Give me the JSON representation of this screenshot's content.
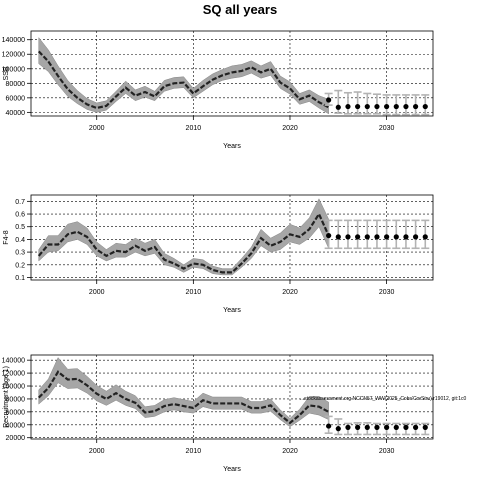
{
  "title": "SQ all years",
  "footnote": "...stockassessment.org NCCN57_WW(2025_Cobs'CorStru),r19012, git:1c0",
  "chart_data": [
    {
      "type": "line",
      "name": "ssb",
      "xlabel": "Years",
      "ylabel": "SSB",
      "xlim": [
        1993.2,
        2034.8
      ],
      "ylim": [
        35000,
        152000
      ],
      "xticks": [
        2000,
        2010,
        2020,
        2030
      ],
      "yticks": [
        40000,
        60000,
        80000,
        100000,
        120000,
        140000
      ],
      "x": [
        1994,
        1995,
        1996,
        1997,
        1998,
        1999,
        2000,
        2001,
        2002,
        2003,
        2004,
        2005,
        2006,
        2007,
        2008,
        2009,
        2010,
        2011,
        2012,
        2013,
        2014,
        2015,
        2016,
        2017,
        2018,
        2019,
        2020,
        2021,
        2022,
        2023,
        2024
      ],
      "estimate": [
        124000,
        110000,
        90000,
        72000,
        60000,
        51000,
        46000,
        49000,
        62000,
        74000,
        63000,
        68000,
        62000,
        76000,
        80000,
        81000,
        66000,
        76000,
        85000,
        91000,
        95000,
        97000,
        102000,
        95000,
        100000,
        81000,
        73000,
        58000,
        63000,
        54000,
        47000
      ],
      "lower": [
        107000,
        96000,
        78000,
        62000,
        52000,
        44000,
        40000,
        43000,
        55000,
        66000,
        56000,
        61000,
        56000,
        69000,
        73000,
        74000,
        60000,
        69000,
        78000,
        84000,
        87000,
        89000,
        94000,
        87000,
        91000,
        73000,
        65000,
        51000,
        55000,
        46000,
        38000
      ],
      "upper": [
        143000,
        126000,
        104000,
        84000,
        70000,
        59000,
        53000,
        56000,
        69000,
        83000,
        71000,
        76000,
        69000,
        84000,
        88000,
        89000,
        73000,
        84000,
        93000,
        99000,
        104000,
        106000,
        111000,
        104000,
        110000,
        90000,
        82000,
        66000,
        71000,
        63000,
        58000
      ],
      "forecast_x": [
        2024,
        2025,
        2026,
        2027,
        2028,
        2029,
        2030,
        2031,
        2032,
        2033,
        2034
      ],
      "forecast_median": [
        57000,
        47000,
        48000,
        48000,
        48000,
        48000,
        48000,
        48000,
        48000,
        48000,
        48000
      ],
      "forecast_low": [
        50000,
        39000,
        38000,
        38000,
        38000,
        38000,
        37000,
        37000,
        37000,
        37000,
        37000
      ],
      "forecast_high": [
        66000,
        70000,
        67000,
        68000,
        66000,
        65000,
        64000,
        64000,
        64000,
        64000,
        64000
      ]
    },
    {
      "type": "line",
      "name": "fbar",
      "xlabel": "Years",
      "ylabel": "F4-8",
      "xlim": [
        1993.2,
        2034.8
      ],
      "ylim": [
        0.08,
        0.75
      ],
      "xticks": [
        2000,
        2010,
        2020,
        2030
      ],
      "yticks": [
        0.1,
        0.2,
        0.3,
        0.4,
        0.5,
        0.6,
        0.7
      ],
      "x": [
        1994,
        1995,
        1996,
        1997,
        1998,
        1999,
        2000,
        2001,
        2002,
        2003,
        2004,
        2005,
        2006,
        2007,
        2008,
        2009,
        2010,
        2011,
        2012,
        2013,
        2014,
        2015,
        2016,
        2017,
        2018,
        2019,
        2020,
        2021,
        2022,
        2023,
        2024
      ],
      "estimate": [
        0.27,
        0.36,
        0.36,
        0.44,
        0.46,
        0.42,
        0.32,
        0.27,
        0.31,
        0.3,
        0.35,
        0.31,
        0.34,
        0.24,
        0.21,
        0.17,
        0.21,
        0.2,
        0.16,
        0.14,
        0.14,
        0.21,
        0.29,
        0.41,
        0.35,
        0.38,
        0.44,
        0.42,
        0.48,
        0.6,
        0.43
      ],
      "lower": [
        0.23,
        0.3,
        0.31,
        0.38,
        0.4,
        0.36,
        0.27,
        0.23,
        0.26,
        0.26,
        0.3,
        0.27,
        0.29,
        0.2,
        0.18,
        0.14,
        0.18,
        0.17,
        0.13,
        0.12,
        0.12,
        0.18,
        0.25,
        0.35,
        0.3,
        0.32,
        0.38,
        0.36,
        0.41,
        0.5,
        0.33
      ],
      "upper": [
        0.32,
        0.43,
        0.43,
        0.52,
        0.54,
        0.49,
        0.38,
        0.32,
        0.37,
        0.36,
        0.41,
        0.37,
        0.4,
        0.29,
        0.25,
        0.2,
        0.25,
        0.24,
        0.19,
        0.17,
        0.17,
        0.25,
        0.34,
        0.48,
        0.41,
        0.45,
        0.52,
        0.49,
        0.57,
        0.72,
        0.56
      ],
      "forecast_x": [
        2024,
        2025,
        2026,
        2027,
        2028,
        2029,
        2030,
        2031,
        2032,
        2033,
        2034
      ],
      "forecast_median": [
        0.43,
        0.42,
        0.42,
        0.42,
        0.42,
        0.42,
        0.42,
        0.42,
        0.42,
        0.42,
        0.42
      ],
      "forecast_low": [
        0.33,
        0.33,
        0.33,
        0.33,
        0.33,
        0.33,
        0.33,
        0.33,
        0.33,
        0.33,
        0.33
      ],
      "forecast_high": [
        0.55,
        0.55,
        0.55,
        0.55,
        0.55,
        0.55,
        0.55,
        0.55,
        0.55,
        0.55,
        0.55
      ]
    },
    {
      "type": "line",
      "name": "recruitment",
      "xlabel": "Years",
      "ylabel": "Recruitment (age 1)",
      "xlim": [
        1993.2,
        2034.8
      ],
      "ylim": [
        18000,
        148000
      ],
      "xticks": [
        2000,
        2010,
        2020,
        2030
      ],
      "yticks": [
        20000,
        40000,
        60000,
        80000,
        100000,
        120000,
        140000
      ],
      "x": [
        1994,
        1995,
        1996,
        1997,
        1998,
        1999,
        2000,
        2001,
        2002,
        2003,
        2004,
        2005,
        2006,
        2007,
        2008,
        2009,
        2010,
        2011,
        2012,
        2013,
        2014,
        2015,
        2016,
        2017,
        2018,
        2019,
        2020,
        2021,
        2022,
        2023,
        2024
      ],
      "estimate": [
        82000,
        97000,
        122000,
        110000,
        111000,
        101000,
        88000,
        80000,
        89000,
        80000,
        74000,
        59000,
        61000,
        69000,
        72000,
        69000,
        66000,
        78000,
        73000,
        73000,
        73000,
        73000,
        66000,
        66000,
        70000,
        55000,
        43000,
        55000,
        70000,
        68000,
        60000
      ],
      "lower": [
        72000,
        85000,
        105000,
        96000,
        97000,
        89000,
        77000,
        70000,
        78000,
        70000,
        65000,
        51000,
        53000,
        60000,
        63000,
        60000,
        58000,
        68000,
        64000,
        64000,
        64000,
        64000,
        58000,
        58000,
        61000,
        48000,
        37000,
        47000,
        58000,
        55000,
        48000
      ],
      "upper": [
        94000,
        111000,
        144000,
        126000,
        127000,
        115000,
        101000,
        92000,
        102000,
        92000,
        85000,
        68000,
        70000,
        79000,
        82000,
        79000,
        76000,
        89000,
        83000,
        83000,
        83000,
        83000,
        76000,
        76000,
        80000,
        63000,
        50000,
        64000,
        84000,
        84000,
        75000
      ],
      "forecast_x": [
        2024,
        2025,
        2026,
        2027,
        2028,
        2029,
        2030,
        2031,
        2032,
        2033,
        2034
      ],
      "forecast_median": [
        38000,
        34000,
        36000,
        36000,
        36000,
        36000,
        36000,
        36000,
        36000,
        36000,
        36000
      ],
      "forecast_low": [
        27000,
        25000,
        25000,
        25000,
        25000,
        25000,
        25000,
        25000,
        25000,
        25000,
        25000
      ],
      "forecast_high": [
        53000,
        49000,
        42000,
        43000,
        43000,
        42000,
        42000,
        42000,
        42000,
        42000,
        42000
      ]
    }
  ]
}
